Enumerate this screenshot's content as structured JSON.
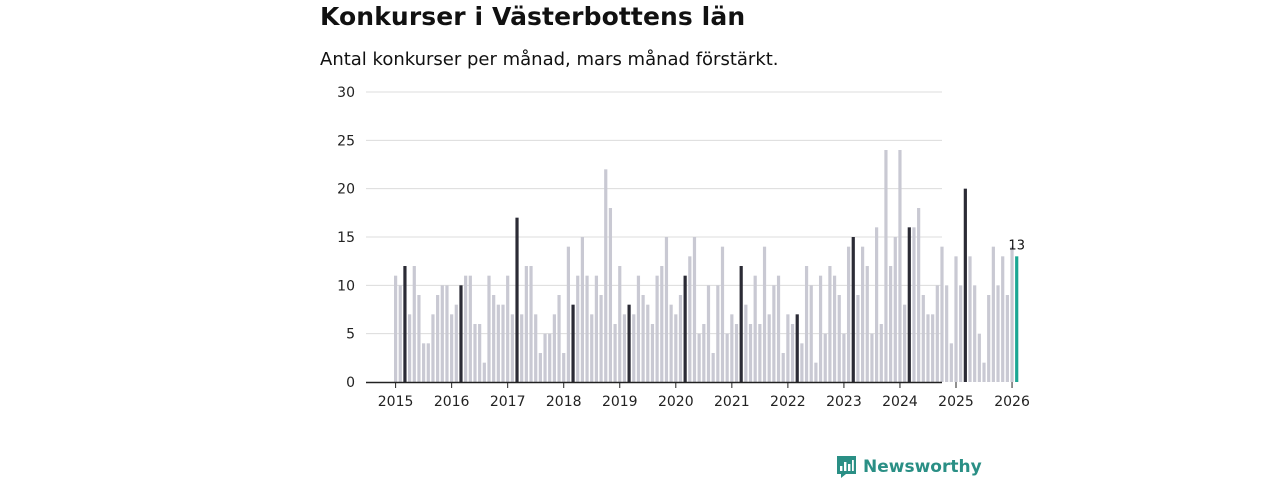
{
  "title": "Konkurser i Västerbottens län",
  "subtitle": "Antal konkurser per månad, mars månad förstärkt.",
  "brand": {
    "name": "Newsworthy"
  },
  "colors": {
    "bar": "#c9c9d3",
    "march": "#2b2b35",
    "latest": "#1aa693",
    "grid": "#dcdcdc",
    "axis": "#222222",
    "brand": "#2a8f85"
  },
  "chart_data": {
    "type": "bar",
    "title": "Konkurser i Västerbottens län",
    "xlabel": "",
    "ylabel": "",
    "ylim": [
      0,
      30
    ],
    "yticks": [
      "0",
      "5",
      "10",
      "15",
      "20",
      "25",
      "30"
    ],
    "xticks": [
      "2015",
      "2016",
      "2017",
      "2018",
      "2019",
      "2020",
      "2021",
      "2022",
      "2023",
      "2024",
      "2025",
      "2026"
    ],
    "start": "2015-01",
    "highlight_month": "mars",
    "latest_label": "13",
    "values": [
      11,
      10,
      12,
      7,
      12,
      9,
      4,
      4,
      7,
      9,
      10,
      10,
      7,
      8,
      10,
      11,
      11,
      6,
      6,
      2,
      11,
      9,
      8,
      8,
      11,
      7,
      17,
      7,
      12,
      12,
      7,
      3,
      5,
      5,
      7,
      9,
      3,
      14,
      8,
      11,
      15,
      11,
      7,
      11,
      9,
      22,
      18,
      6,
      12,
      7,
      8,
      7,
      11,
      9,
      8,
      6,
      11,
      12,
      15,
      8,
      7,
      9,
      11,
      13,
      15,
      5,
      6,
      10,
      3,
      10,
      14,
      5,
      7,
      6,
      12,
      8,
      6,
      11,
      6,
      14,
      7,
      10,
      11,
      3,
      7,
      6,
      7,
      4,
      12,
      10,
      2,
      11,
      5,
      12,
      11,
      9,
      5,
      14,
      15,
      9,
      14,
      12,
      5,
      16,
      6,
      24,
      12,
      15,
      24,
      8,
      16,
      16,
      18,
      9,
      7,
      7,
      10,
      14,
      10,
      4,
      13,
      10,
      20,
      13,
      10,
      5,
      2,
      9,
      14,
      10,
      13,
      9,
      14,
      13
    ]
  }
}
